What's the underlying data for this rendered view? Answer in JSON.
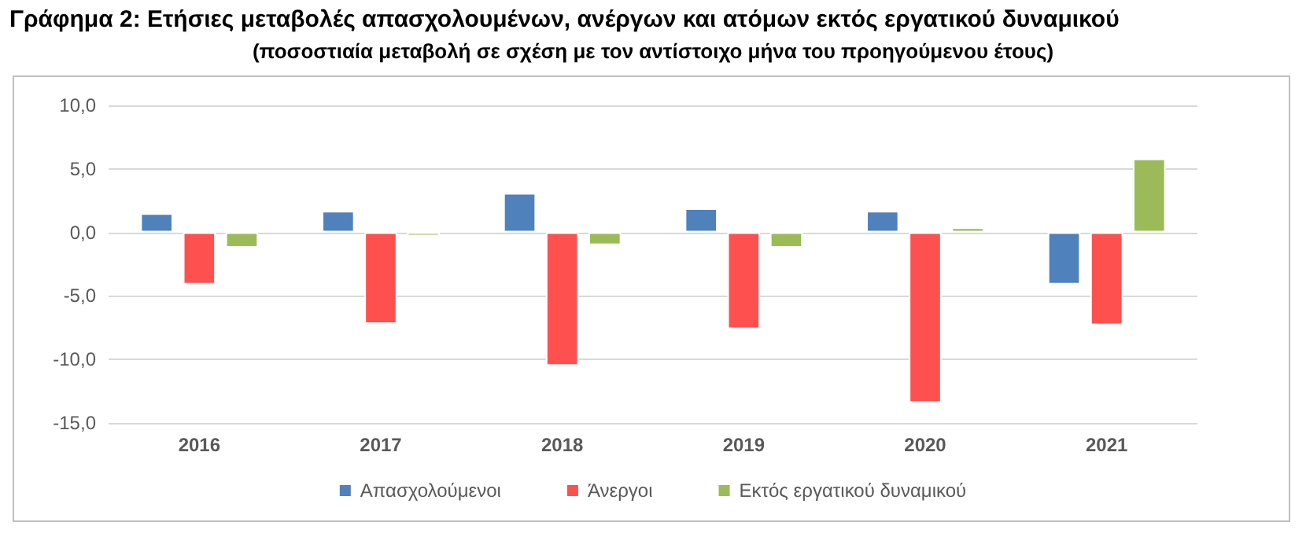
{
  "chart_data": {
    "type": "bar",
    "title": "Γράφημα 2: Ετήσιες μεταβολές απασχολουμένων, ανέργων και ατόμων εκτός εργατικού δυναμικού",
    "subtitle": "(ποσοστιαία μεταβολή σε σχέση με τον αντίστοιχο μήνα του προηγούμενου έτους)",
    "categories": [
      "2016",
      "2017",
      "2018",
      "2019",
      "2020",
      "2021"
    ],
    "series": [
      {
        "name": "Απασχολούμενοι",
        "color": "#4f81bd",
        "values": [
          1.5,
          1.7,
          3.1,
          1.9,
          1.7,
          -4.1
        ]
      },
      {
        "name": "Άνεργοι",
        "color": "#ff5050",
        "values": [
          -4.1,
          -7.2,
          -10.5,
          -7.6,
          -13.4,
          -7.3
        ]
      },
      {
        "name": "Εκτός εργατικού δυναμικού",
        "color": "#9bbb59",
        "values": [
          -1.2,
          -0.3,
          -1.0,
          -1.2,
          0.4,
          5.8
        ]
      }
    ],
    "ylim": [
      -15,
      10
    ],
    "yticks": [
      {
        "value": -15,
        "label": "-15,0"
      },
      {
        "value": -10,
        "label": "-10,0"
      },
      {
        "value": -5,
        "label": "-5,0"
      },
      {
        "value": 0,
        "label": "0,0"
      },
      {
        "value": 5,
        "label": "5,0"
      },
      {
        "value": 10,
        "label": "10,0"
      }
    ],
    "grid": "y",
    "legend": "bottom"
  }
}
